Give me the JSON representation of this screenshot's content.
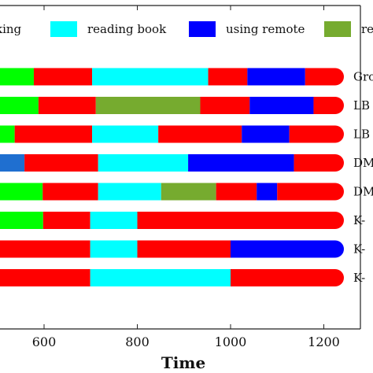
{
  "chart_data": {
    "type": "bar",
    "orientation": "horizontal-stacked-timeline",
    "xlabel": "Time",
    "x_ticks": [
      600,
      800,
      1000,
      1200
    ],
    "xlim": [
      500,
      1240
    ],
    "legend": [
      {
        "key": "tail",
        "label": "king",
        "color": "#ff0000"
      },
      {
        "key": "reading_book",
        "label": "reading book",
        "color": "#00ffff"
      },
      {
        "key": "using_remote",
        "label": "using remote",
        "color": "#0000ff"
      },
      {
        "key": "truncated",
        "label": "re",
        "color": "#76ab2f"
      }
    ],
    "rows": [
      {
        "label": "Gro",
        "segments": [
          {
            "start": 500,
            "end": 578,
            "color": "#00ff00"
          },
          {
            "start": 578,
            "end": 703,
            "color": "#ff0000"
          },
          {
            "start": 703,
            "end": 952,
            "color": "#00ffff"
          },
          {
            "start": 952,
            "end": 1036,
            "color": "#ff0000"
          },
          {
            "start": 1036,
            "end": 1160,
            "color": "#0000ff"
          },
          {
            "start": 1160,
            "end": 1240,
            "color": "#ff0000"
          }
        ]
      },
      {
        "label": "LB",
        "segments": [
          {
            "start": 500,
            "end": 588,
            "color": "#00ff00"
          },
          {
            "start": 588,
            "end": 711,
            "color": "#ff0000"
          },
          {
            "start": 711,
            "end": 935,
            "color": "#76ab2f"
          },
          {
            "start": 935,
            "end": 1041,
            "color": "#ff0000"
          },
          {
            "start": 1041,
            "end": 1178,
            "color": "#0000ff"
          },
          {
            "start": 1178,
            "end": 1240,
            "color": "#ff0000"
          }
        ]
      },
      {
        "label": "LB",
        "segments": [
          {
            "start": 500,
            "end": 537,
            "color": "#00ff00"
          },
          {
            "start": 537,
            "end": 703,
            "color": "#ff0000"
          },
          {
            "start": 703,
            "end": 845,
            "color": "#00ffff"
          },
          {
            "start": 845,
            "end": 1024,
            "color": "#ff0000"
          },
          {
            "start": 1024,
            "end": 1126,
            "color": "#0000ff"
          },
          {
            "start": 1126,
            "end": 1240,
            "color": "#ff0000"
          }
        ]
      },
      {
        "label": "DM",
        "segments": [
          {
            "start": 500,
            "end": 558,
            "color": "#1f6fd0"
          },
          {
            "start": 558,
            "end": 716,
            "color": "#ff0000"
          },
          {
            "start": 716,
            "end": 909,
            "color": "#00ffff"
          },
          {
            "start": 909,
            "end": 1136,
            "color": "#0000ff"
          },
          {
            "start": 1136,
            "end": 1240,
            "color": "#ff0000"
          }
        ]
      },
      {
        "label": "DM",
        "segments": [
          {
            "start": 500,
            "end": 597,
            "color": "#00ff00"
          },
          {
            "start": 597,
            "end": 716,
            "color": "#ff0000"
          },
          {
            "start": 716,
            "end": 851,
            "color": "#00ffff"
          },
          {
            "start": 851,
            "end": 969,
            "color": "#76ab2f"
          },
          {
            "start": 969,
            "end": 1056,
            "color": "#ff0000"
          },
          {
            "start": 1056,
            "end": 1100,
            "color": "#0000ff"
          },
          {
            "start": 1100,
            "end": 1240,
            "color": "#ff0000"
          }
        ]
      },
      {
        "label": "K-",
        "segments": [
          {
            "start": 500,
            "end": 598,
            "color": "#00ff00"
          },
          {
            "start": 598,
            "end": 699,
            "color": "#ff0000"
          },
          {
            "start": 699,
            "end": 800,
            "color": "#00ffff"
          },
          {
            "start": 800,
            "end": 1240,
            "color": "#ff0000"
          }
        ]
      },
      {
        "label": "K-",
        "segments": [
          {
            "start": 500,
            "end": 699,
            "color": "#ff0000"
          },
          {
            "start": 699,
            "end": 800,
            "color": "#00ffff"
          },
          {
            "start": 800,
            "end": 1000,
            "color": "#ff0000"
          },
          {
            "start": 1000,
            "end": 1240,
            "color": "#0000ff"
          }
        ]
      },
      {
        "label": "K-",
        "segments": [
          {
            "start": 500,
            "end": 699,
            "color": "#ff0000"
          },
          {
            "start": 699,
            "end": 1000,
            "color": "#00ffff"
          },
          {
            "start": 1000,
            "end": 1240,
            "color": "#ff0000"
          }
        ]
      }
    ]
  }
}
